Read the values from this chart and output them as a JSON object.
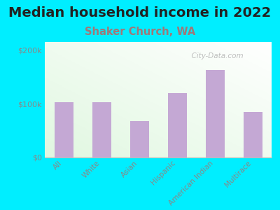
{
  "title": "Median household income in 2022",
  "subtitle": "Shaker Church, WA",
  "categories": [
    "All",
    "White",
    "Asian",
    "Hispanic",
    "American Indian",
    "Multirace"
  ],
  "values": [
    103000,
    103000,
    68000,
    120000,
    163000,
    85000
  ],
  "bar_color": "#c4a8d4",
  "background_outer": "#00EEFF",
  "yticks": [
    0,
    100000,
    200000
  ],
  "ytick_labels": [
    "$0",
    "$100k",
    "$200k"
  ],
  "ylim": [
    0,
    215000
  ],
  "title_fontsize": 14,
  "subtitle_fontsize": 10.5,
  "title_color": "#222222",
  "subtitle_color": "#a07878",
  "tick_label_color": "#888888",
  "watermark": "  City-Data.com",
  "watermark_icon": "ⓘ"
}
